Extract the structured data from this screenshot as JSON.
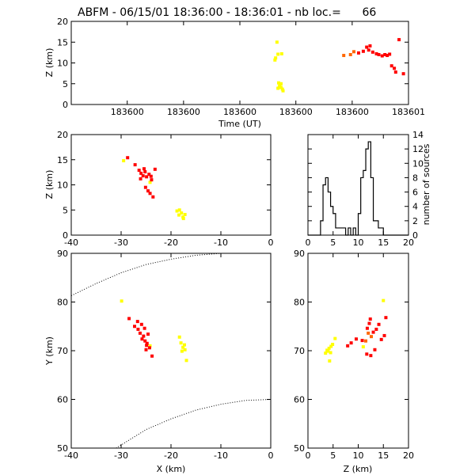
{
  "colors": {
    "yellow": "#ffff00",
    "orange": "#ff6600",
    "red": "#ff0000",
    "axis": "#000000"
  },
  "chart_data": [
    {
      "id": "time_height",
      "type": "scatter",
      "title": "ABFM - 06/15/01 18:36:00 - 18:36:01 - nb loc.=      66",
      "xlabel": "Time (UT)",
      "ylabel": "Z (km)",
      "xlim": [
        0.0,
        1.0
      ],
      "ylim": [
        0,
        20
      ],
      "xticks": [
        0.166,
        0.333,
        0.5,
        0.666,
        0.833,
        1.0
      ],
      "xticklabels": [
        "183600",
        "183600",
        "183600",
        "183600",
        "183600",
        "183601"
      ],
      "yticks": [
        0,
        5,
        10,
        15,
        20
      ],
      "points": [
        {
          "x": 0.61,
          "y": 15.0,
          "c": "yellow"
        },
        {
          "x": 0.606,
          "y": 11.2,
          "c": "yellow"
        },
        {
          "x": 0.613,
          "y": 12.1,
          "c": "yellow"
        },
        {
          "x": 0.624,
          "y": 12.2,
          "c": "yellow"
        },
        {
          "x": 0.604,
          "y": 10.7,
          "c": "yellow"
        },
        {
          "x": 0.615,
          "y": 5.2,
          "c": "yellow"
        },
        {
          "x": 0.618,
          "y": 4.6,
          "c": "yellow"
        },
        {
          "x": 0.622,
          "y": 4.1,
          "c": "yellow"
        },
        {
          "x": 0.626,
          "y": 3.7,
          "c": "yellow"
        },
        {
          "x": 0.613,
          "y": 3.9,
          "c": "yellow"
        },
        {
          "x": 0.628,
          "y": 3.3,
          "c": "yellow"
        },
        {
          "x": 0.617,
          "y": 4.2,
          "c": "yellow"
        },
        {
          "x": 0.622,
          "y": 5.0,
          "c": "yellow"
        },
        {
          "x": 0.808,
          "y": 11.8,
          "c": "orange"
        },
        {
          "x": 0.828,
          "y": 12.0,
          "c": "orange"
        },
        {
          "x": 0.838,
          "y": 12.7,
          "c": "orange"
        },
        {
          "x": 0.852,
          "y": 12.4,
          "c": "red"
        },
        {
          "x": 0.866,
          "y": 12.8,
          "c": "red"
        },
        {
          "x": 0.876,
          "y": 13.8,
          "c": "red"
        },
        {
          "x": 0.882,
          "y": 13.1,
          "c": "red"
        },
        {
          "x": 0.886,
          "y": 14.1,
          "c": "red"
        },
        {
          "x": 0.894,
          "y": 12.6,
          "c": "red"
        },
        {
          "x": 0.905,
          "y": 12.2,
          "c": "red"
        },
        {
          "x": 0.912,
          "y": 12.0,
          "c": "red"
        },
        {
          "x": 0.922,
          "y": 11.7,
          "c": "red"
        },
        {
          "x": 0.93,
          "y": 12.0,
          "c": "red"
        },
        {
          "x": 0.937,
          "y": 11.8,
          "c": "red"
        },
        {
          "x": 0.944,
          "y": 12.1,
          "c": "red"
        },
        {
          "x": 0.95,
          "y": 9.3,
          "c": "red"
        },
        {
          "x": 0.958,
          "y": 8.7,
          "c": "red"
        },
        {
          "x": 0.962,
          "y": 7.8,
          "c": "red"
        },
        {
          "x": 0.972,
          "y": 15.6,
          "c": "red"
        },
        {
          "x": 0.985,
          "y": 7.4,
          "c": "red"
        }
      ]
    },
    {
      "id": "x_height",
      "type": "scatter",
      "xlabel": "",
      "ylabel": "Z (km)",
      "xlim": [
        -40,
        0
      ],
      "ylim": [
        0,
        20
      ],
      "xticks": [
        -40,
        -30,
        -20,
        -10,
        0
      ],
      "yticks": [
        0,
        5,
        10,
        15,
        20
      ],
      "points": [
        {
          "x": -29.5,
          "y": 14.8,
          "c": "yellow"
        },
        {
          "x": -24.2,
          "y": 10.5,
          "c": "yellow"
        },
        {
          "x": -18.3,
          "y": 5.0,
          "c": "yellow"
        },
        {
          "x": -17.9,
          "y": 4.4,
          "c": "yellow"
        },
        {
          "x": -18.4,
          "y": 4.0,
          "c": "yellow"
        },
        {
          "x": -17.6,
          "y": 3.6,
          "c": "yellow"
        },
        {
          "x": -17.2,
          "y": 4.1,
          "c": "yellow"
        },
        {
          "x": -18.8,
          "y": 4.8,
          "c": "yellow"
        },
        {
          "x": -17.5,
          "y": 3.3,
          "c": "yellow"
        },
        {
          "x": -28.7,
          "y": 15.4,
          "c": "red"
        },
        {
          "x": -27.2,
          "y": 14.0,
          "c": "red"
        },
        {
          "x": -26.4,
          "y": 12.9,
          "c": "red"
        },
        {
          "x": -26.0,
          "y": 12.3,
          "c": "red"
        },
        {
          "x": -25.6,
          "y": 11.8,
          "c": "red"
        },
        {
          "x": -25.2,
          "y": 12.6,
          "c": "red"
        },
        {
          "x": -24.9,
          "y": 11.6,
          "c": "red"
        },
        {
          "x": -24.4,
          "y": 12.1,
          "c": "red"
        },
        {
          "x": -26.1,
          "y": 11.2,
          "c": "red"
        },
        {
          "x": -25.4,
          "y": 13.2,
          "c": "red"
        },
        {
          "x": -24.0,
          "y": 11.7,
          "c": "red"
        },
        {
          "x": -23.2,
          "y": 13.1,
          "c": "red"
        },
        {
          "x": -25.1,
          "y": 9.5,
          "c": "red"
        },
        {
          "x": -24.6,
          "y": 8.8,
          "c": "red"
        },
        {
          "x": -24.2,
          "y": 8.3,
          "c": "red"
        },
        {
          "x": -23.6,
          "y": 7.6,
          "c": "red"
        },
        {
          "x": -23.9,
          "y": 11.0,
          "c": "red"
        }
      ]
    },
    {
      "id": "histogram",
      "type": "line",
      "xlabel": "",
      "ylabel": "number of sources",
      "xlim": [
        0,
        20
      ],
      "ylim": [
        0,
        14
      ],
      "xticks": [
        0,
        5,
        10,
        15,
        20
      ],
      "yticks": [
        0,
        2,
        4,
        6,
        8,
        10,
        12,
        14
      ],
      "x": [
        0,
        1,
        2,
        2.5,
        3,
        3.5,
        4,
        4.5,
        5,
        5.5,
        6,
        6.5,
        7,
        7.5,
        8,
        8.5,
        9,
        9.5,
        10,
        10.5,
        11,
        11.5,
        12,
        12.5,
        13,
        13.5,
        14,
        14.5,
        15,
        20
      ],
      "values": [
        0,
        0,
        0,
        2,
        7,
        8,
        6,
        4,
        3,
        1,
        1,
        1,
        1,
        0,
        1,
        0,
        1,
        0,
        3,
        8,
        9,
        12,
        13,
        8,
        2,
        2,
        1,
        1,
        0,
        0
      ]
    },
    {
      "id": "plan_view",
      "type": "scatter",
      "xlabel": "X (km)",
      "ylabel": "Y (km)",
      "xlim": [
        -40,
        0
      ],
      "ylim": [
        50,
        90
      ],
      "xticks": [
        -40,
        -30,
        -20,
        -10,
        0
      ],
      "yticks": [
        50,
        60,
        70,
        80,
        90
      ],
      "boundaries": [
        {
          "x": [
            -40,
            -35,
            -30,
            -25,
            -20,
            -15,
            -10,
            -5,
            0
          ],
          "y": [
            81.3,
            83.8,
            86.0,
            87.7,
            88.8,
            89.6,
            90.0,
            90.0,
            90.0
          ]
        },
        {
          "x": [
            -31,
            -25,
            -20,
            -15,
            -10,
            -5,
            0
          ],
          "y": [
            50.0,
            53.8,
            56.0,
            57.8,
            59.0,
            59.8,
            60.0
          ]
        }
      ],
      "points": [
        {
          "x": -29.9,
          "y": 80.2,
          "c": "yellow"
        },
        {
          "x": -24.2,
          "y": 71.0,
          "c": "yellow"
        },
        {
          "x": -18.3,
          "y": 72.8,
          "c": "yellow"
        },
        {
          "x": -18.0,
          "y": 71.6,
          "c": "yellow"
        },
        {
          "x": -17.6,
          "y": 70.7,
          "c": "yellow"
        },
        {
          "x": -17.3,
          "y": 71.2,
          "c": "yellow"
        },
        {
          "x": -17.2,
          "y": 70.2,
          "c": "yellow"
        },
        {
          "x": -17.8,
          "y": 69.9,
          "c": "yellow"
        },
        {
          "x": -16.9,
          "y": 68.0,
          "c": "yellow"
        },
        {
          "x": -28.4,
          "y": 76.6,
          "c": "red"
        },
        {
          "x": -27.3,
          "y": 75.0,
          "c": "red"
        },
        {
          "x": -26.6,
          "y": 74.4,
          "c": "red"
        },
        {
          "x": -26.2,
          "y": 73.6,
          "c": "red"
        },
        {
          "x": -25.9,
          "y": 75.4,
          "c": "red"
        },
        {
          "x": -25.5,
          "y": 73.0,
          "c": "red"
        },
        {
          "x": -25.8,
          "y": 72.4,
          "c": "red"
        },
        {
          "x": -25.2,
          "y": 72.0,
          "c": "red"
        },
        {
          "x": -24.8,
          "y": 71.5,
          "c": "red"
        },
        {
          "x": -25.3,
          "y": 74.6,
          "c": "red"
        },
        {
          "x": -24.6,
          "y": 73.4,
          "c": "red"
        },
        {
          "x": -24.3,
          "y": 70.6,
          "c": "red"
        },
        {
          "x": -25.0,
          "y": 70.2,
          "c": "red"
        },
        {
          "x": -23.8,
          "y": 68.9,
          "c": "red"
        },
        {
          "x": -26.7,
          "y": 76.0,
          "c": "red"
        },
        {
          "x": -24.9,
          "y": 71.1,
          "c": "red"
        }
      ]
    },
    {
      "id": "z_plan",
      "type": "scatter",
      "xlabel": "Z (km)",
      "ylabel": "",
      "xlim": [
        0,
        20
      ],
      "ylim": [
        50,
        90
      ],
      "xticks": [
        0,
        5,
        10,
        15,
        20
      ],
      "yticks": [
        50,
        60,
        70,
        80,
        90
      ],
      "points": [
        {
          "x": 5.4,
          "y": 72.5,
          "c": "yellow"
        },
        {
          "x": 4.9,
          "y": 71.3,
          "c": "yellow"
        },
        {
          "x": 4.6,
          "y": 70.9,
          "c": "yellow"
        },
        {
          "x": 4.2,
          "y": 70.5,
          "c": "yellow"
        },
        {
          "x": 3.8,
          "y": 70.1,
          "c": "yellow"
        },
        {
          "x": 4.5,
          "y": 69.6,
          "c": "yellow"
        },
        {
          "x": 3.5,
          "y": 69.5,
          "c": "yellow"
        },
        {
          "x": 4.0,
          "y": 69.9,
          "c": "yellow"
        },
        {
          "x": 4.3,
          "y": 67.9,
          "c": "yellow"
        },
        {
          "x": 11.0,
          "y": 70.8,
          "c": "yellow"
        },
        {
          "x": 15.0,
          "y": 80.3,
          "c": "yellow"
        },
        {
          "x": 12.0,
          "y": 73.6,
          "c": "orange"
        },
        {
          "x": 12.6,
          "y": 72.9,
          "c": "orange"
        },
        {
          "x": 11.5,
          "y": 72.0,
          "c": "orange"
        },
        {
          "x": 7.9,
          "y": 71.0,
          "c": "red"
        },
        {
          "x": 8.6,
          "y": 71.6,
          "c": "red"
        },
        {
          "x": 9.6,
          "y": 72.4,
          "c": "red"
        },
        {
          "x": 10.8,
          "y": 72.1,
          "c": "red"
        },
        {
          "x": 11.8,
          "y": 74.6,
          "c": "red"
        },
        {
          "x": 12.2,
          "y": 75.6,
          "c": "red"
        },
        {
          "x": 12.4,
          "y": 76.5,
          "c": "red"
        },
        {
          "x": 13.0,
          "y": 73.8,
          "c": "red"
        },
        {
          "x": 13.6,
          "y": 74.4,
          "c": "red"
        },
        {
          "x": 14.1,
          "y": 75.4,
          "c": "red"
        },
        {
          "x": 15.5,
          "y": 76.8,
          "c": "red"
        },
        {
          "x": 11.7,
          "y": 69.3,
          "c": "red"
        },
        {
          "x": 12.5,
          "y": 69.0,
          "c": "red"
        },
        {
          "x": 13.3,
          "y": 70.2,
          "c": "red"
        },
        {
          "x": 15.2,
          "y": 73.1,
          "c": "red"
        },
        {
          "x": 14.6,
          "y": 72.3,
          "c": "red"
        }
      ]
    }
  ]
}
